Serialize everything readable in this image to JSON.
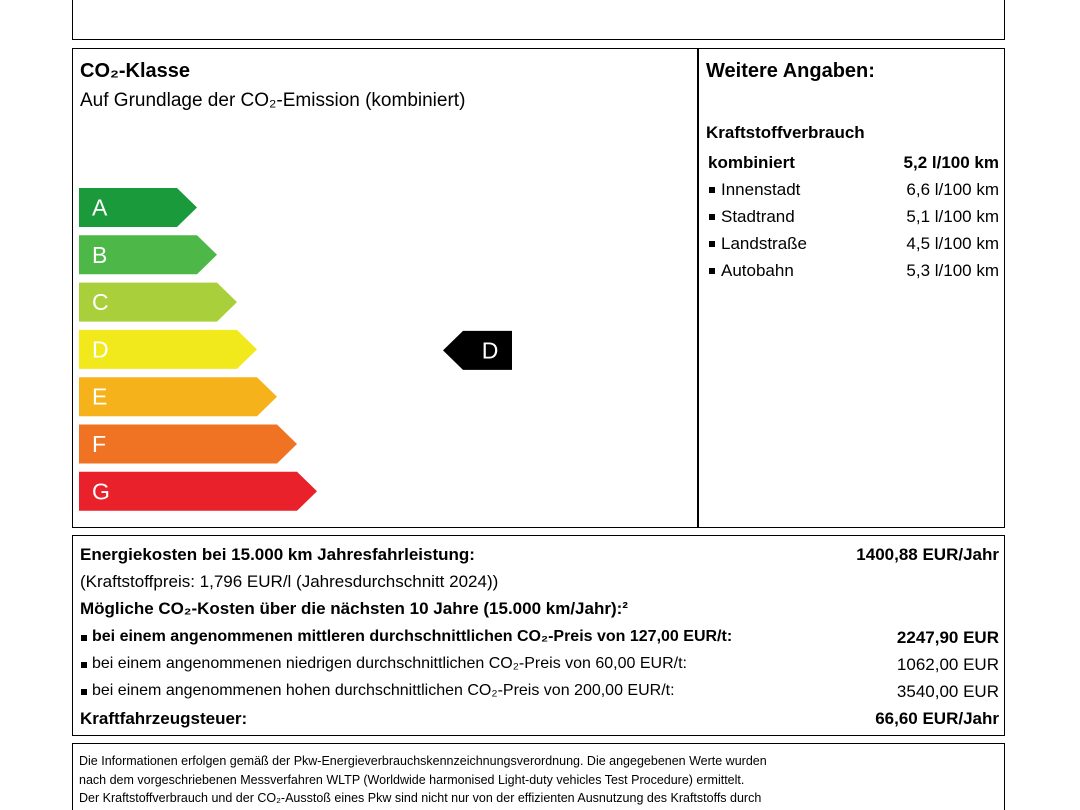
{
  "co2_class": {
    "title": "CO₂-Klasse",
    "subtitle": "Auf Grundlage der CO₂-Emission (kombiniert)",
    "classes": [
      {
        "label": "A",
        "color": "#1b9a3c"
      },
      {
        "label": "B",
        "color": "#4db848"
      },
      {
        "label": "C",
        "color": "#a9cf3a"
      },
      {
        "label": "D",
        "color": "#f2e91c"
      },
      {
        "label": "E",
        "color": "#f6b21b"
      },
      {
        "label": "F",
        "color": "#f07323"
      },
      {
        "label": "G",
        "color": "#e8212b"
      }
    ],
    "current": "D"
  },
  "further": {
    "title": "Weitere Angaben:",
    "section": "Kraftstoffverbrauch",
    "rows": [
      {
        "label": "kombiniert",
        "value": "5,2 l/100 km"
      },
      {
        "label": "Innenstadt",
        "value": "6,6 l/100 km"
      },
      {
        "label": "Stadtrand",
        "value": "5,1 l/100 km"
      },
      {
        "label": "Landstraße",
        "value": "4,5 l/100 km"
      },
      {
        "label": "Autobahn",
        "value": "5,3 l/100 km"
      }
    ]
  },
  "costs": {
    "energy_label": "Energiekosten bei 15.000 km Jahresfahrleistung:",
    "energy_value": "1400,88 EUR/Jahr",
    "fuel_price": "(Kraftstoffpreis: 1,796 EUR/l (Jahresdurchschnitt 2024))",
    "co2_heading": "Mögliche CO₂-Kosten über die nächsten 10 Jahre (15.000 km/Jahr):²",
    "co2_rows": [
      {
        "label": "bei einem angenommenen mittleren durchschnittlichen CO₂-Preis von 127,00 EUR/t:",
        "value": "2247,90 EUR"
      },
      {
        "label": "bei einem angenommenen niedrigen durchschnittlichen CO₂-Preis von 60,00 EUR/t:",
        "value": "1062,00 EUR"
      },
      {
        "label": "bei einem angenommenen hohen durchschnittlichen CO₂-Preis von 200,00 EUR/t:",
        "value": "3540,00 EUR"
      }
    ],
    "tax_label": "Kraftfahrzeugsteuer:",
    "tax_value": "66,60 EUR/Jahr"
  },
  "footnote": {
    "lines": [
      "Die Informationen erfolgen gemäß der Pkw-Energieverbrauchskennzeichnungsverordnung. Die angegebenen Werte wurden",
      "nach dem vorgeschriebenen Messverfahren WLTP (Worldwide harmonised Light-duty vehicles Test Procedure) ermittelt.",
      "Der Kraftstoffverbrauch und der CO₂-Ausstoß eines Pkw sind nicht nur von der effizienten Ausnutzung des Kraftstoffs durch"
    ]
  }
}
